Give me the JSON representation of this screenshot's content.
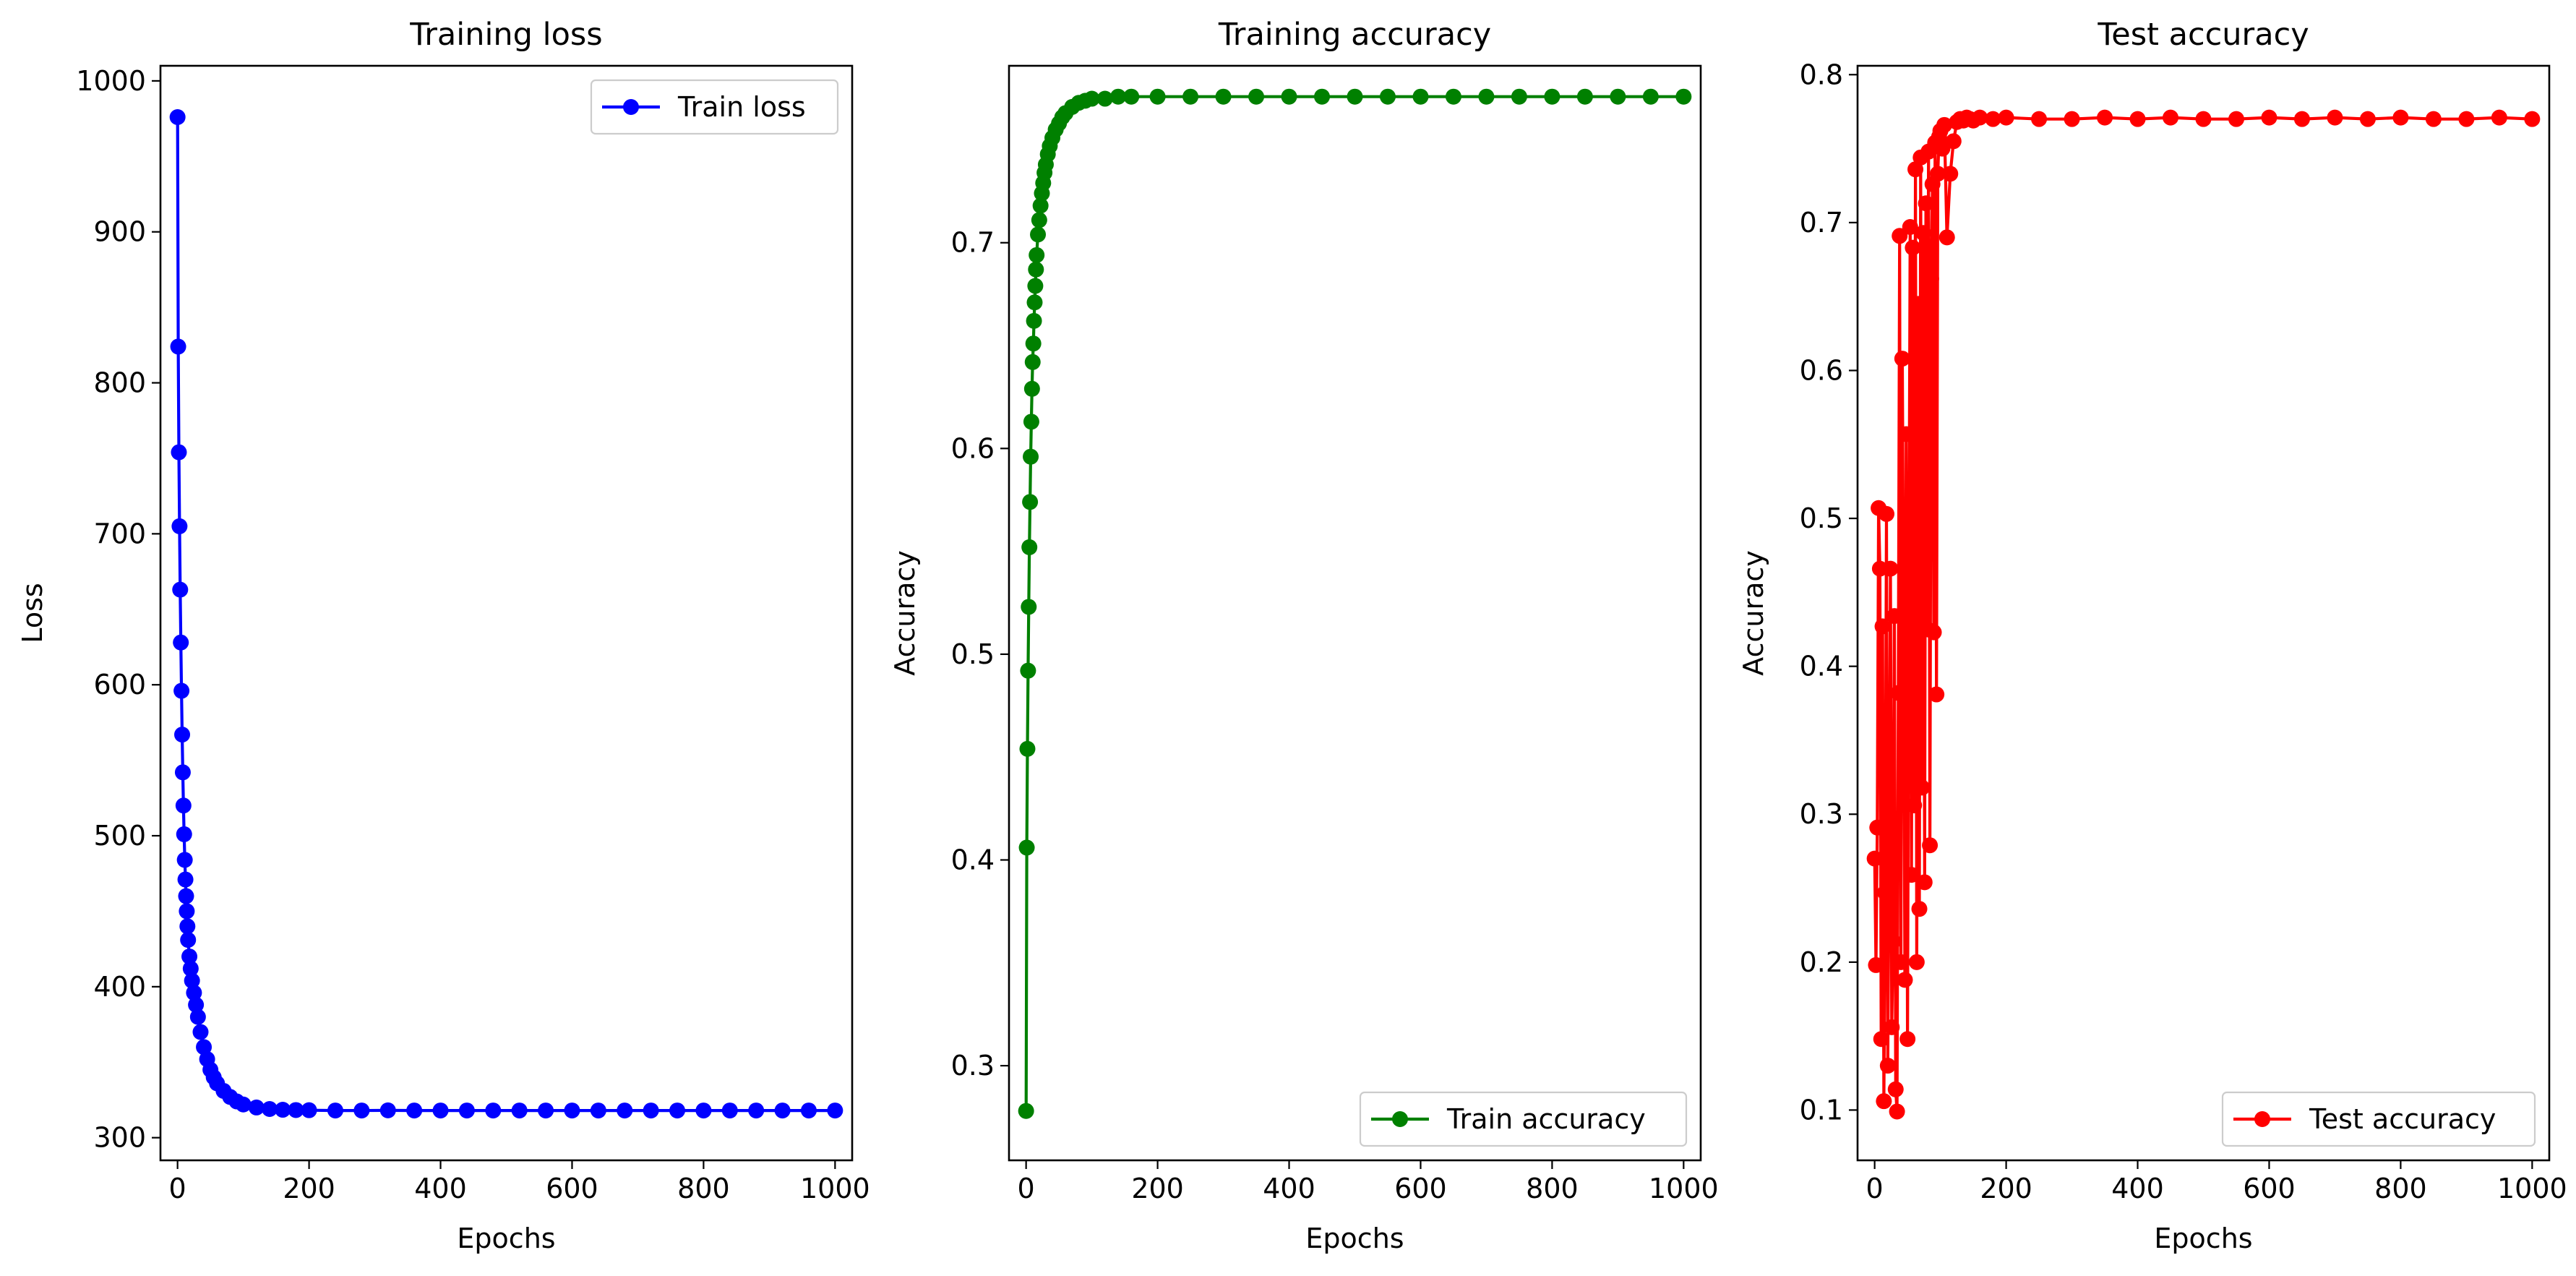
{
  "chart_data": [
    {
      "type": "line",
      "title": "Training loss",
      "xlabel": "Epochs",
      "ylabel": "Loss",
      "xlim": [
        -26,
        1026
      ],
      "ylim": [
        285,
        1010
      ],
      "xticks": [
        0,
        200,
        400,
        600,
        800,
        1000
      ],
      "yticks": [
        300,
        400,
        500,
        600,
        700,
        800,
        900,
        1000
      ],
      "grid": false,
      "legend_position": "upper-right",
      "series": [
        {
          "name": "Train loss",
          "color": "#0000ff",
          "marker": "circle",
          "x": [
            0,
            1,
            2,
            3,
            4,
            5,
            6,
            7,
            8,
            9,
            10,
            11,
            12,
            13,
            14,
            15,
            16,
            18,
            20,
            22,
            25,
            28,
            31,
            35,
            40,
            45,
            50,
            55,
            60,
            70,
            80,
            90,
            100,
            120,
            140,
            160,
            180,
            200,
            240,
            280,
            320,
            360,
            400,
            440,
            480,
            520,
            560,
            600,
            640,
            680,
            720,
            760,
            800,
            840,
            880,
            920,
            960,
            1000
          ],
          "values": [
            976,
            824,
            754,
            705,
            663,
            628,
            596,
            567,
            542,
            520,
            501,
            484,
            471,
            460,
            450,
            440,
            431,
            420,
            412,
            404,
            396,
            388,
            380,
            370,
            360,
            352,
            345,
            340,
            336,
            331,
            327,
            324,
            322,
            320,
            319,
            318.5,
            318.3,
            318.2,
            318,
            318,
            318.1,
            318,
            318,
            318,
            318,
            318,
            318,
            318,
            318,
            318,
            318,
            318,
            318,
            318,
            318,
            318,
            318,
            318
          ]
        }
      ]
    },
    {
      "type": "line",
      "title": "Training accuracy",
      "xlabel": "Epochs",
      "ylabel": "Accuracy",
      "xlim": [
        -26,
        1026
      ],
      "ylim": [
        0.254,
        0.786
      ],
      "xticks": [
        0,
        200,
        400,
        600,
        800,
        1000
      ],
      "yticks": [
        0.3,
        0.4,
        0.5,
        0.6,
        0.7
      ],
      "grid": false,
      "legend_position": "lower-right",
      "series": [
        {
          "name": "Train accuracy",
          "color": "#008000",
          "marker": "circle",
          "x": [
            0,
            1,
            2,
            3,
            4,
            5,
            6,
            7,
            8,
            9,
            10,
            11,
            12,
            13,
            14,
            15,
            16,
            18,
            20,
            22,
            24,
            26,
            28,
            30,
            33,
            36,
            40,
            45,
            50,
            55,
            60,
            70,
            80,
            90,
            100,
            120,
            140,
            160,
            200,
            250,
            300,
            350,
            400,
            450,
            500,
            550,
            600,
            650,
            700,
            750,
            800,
            850,
            900,
            950,
            1000
          ],
          "values": [
            0.278,
            0.406,
            0.454,
            0.492,
            0.523,
            0.552,
            0.574,
            0.596,
            0.613,
            0.629,
            0.642,
            0.651,
            0.662,
            0.671,
            0.679,
            0.687,
            0.694,
            0.704,
            0.711,
            0.718,
            0.724,
            0.729,
            0.734,
            0.738,
            0.743,
            0.747,
            0.751,
            0.755,
            0.758,
            0.761,
            0.763,
            0.766,
            0.768,
            0.769,
            0.77,
            0.77,
            0.771,
            0.771,
            0.771,
            0.771,
            0.771,
            0.771,
            0.771,
            0.771,
            0.771,
            0.771,
            0.771,
            0.771,
            0.771,
            0.771,
            0.771,
            0.771,
            0.771,
            0.771,
            0.771
          ]
        }
      ]
    },
    {
      "type": "line",
      "title": "Test accuracy",
      "xlabel": "Epochs",
      "ylabel": "Accuracy",
      "xlim": [
        -26,
        1026
      ],
      "ylim": [
        0.066,
        0.806
      ],
      "xticks": [
        0,
        200,
        400,
        600,
        800,
        1000
      ],
      "yticks": [
        0.1,
        0.2,
        0.3,
        0.4,
        0.5,
        0.6,
        0.7,
        0.8
      ],
      "grid": false,
      "legend_position": "lower-right",
      "series": [
        {
          "name": "Test accuracy",
          "color": "#ff0000",
          "marker": "circle",
          "x": [
            0,
            2,
            4,
            6,
            8,
            10,
            12,
            14,
            16,
            18,
            20,
            22,
            24,
            26,
            28,
            30,
            32,
            34,
            36,
            38,
            40,
            42,
            44,
            46,
            48,
            50,
            52,
            54,
            56,
            58,
            60,
            62,
            64,
            66,
            68,
            70,
            72,
            74,
            76,
            78,
            80,
            82,
            84,
            86,
            88,
            90,
            92,
            94,
            96,
            98,
            100,
            103,
            106,
            110,
            115,
            120,
            125,
            130,
            135,
            140,
            145,
            150,
            160,
            180,
            200,
            250,
            300,
            350,
            400,
            450,
            500,
            550,
            600,
            650,
            700,
            750,
            800,
            850,
            900,
            950,
            1000
          ],
          "values": [
            0.27,
            0.198,
            0.291,
            0.507,
            0.466,
            0.148,
            0.427,
            0.106,
            0.247,
            0.503,
            0.13,
            0.276,
            0.466,
            0.156,
            0.214,
            0.434,
            0.114,
            0.099,
            0.382,
            0.691,
            0.2,
            0.608,
            0.436,
            0.188,
            0.557,
            0.148,
            0.444,
            0.697,
            0.259,
            0.683,
            0.306,
            0.736,
            0.2,
            0.645,
            0.236,
            0.744,
            0.318,
            0.693,
            0.254,
            0.713,
            0.425,
            0.748,
            0.279,
            0.662,
            0.726,
            0.423,
            0.754,
            0.381,
            0.733,
            0.758,
            0.762,
            0.75,
            0.766,
            0.69,
            0.733,
            0.755,
            0.768,
            0.77,
            0.769,
            0.771,
            0.77,
            0.769,
            0.771,
            0.77,
            0.771,
            0.77,
            0.77,
            0.771,
            0.77,
            0.771,
            0.77,
            0.77,
            0.771,
            0.77,
            0.771,
            0.77,
            0.771,
            0.77,
            0.77,
            0.771,
            0.77
          ]
        }
      ]
    }
  ]
}
